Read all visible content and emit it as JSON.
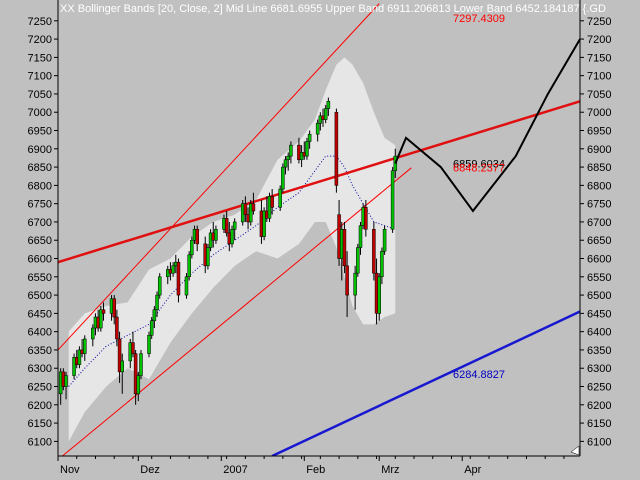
{
  "header": {
    "text": "XX Bollinger Bands [20, Close, 2] Mid Line 6681.6955  Upper Band 6911.206813 Lower Band 6452.184187 {.GD"
  },
  "colors": {
    "plot_bg": "#c0c0c0",
    "band_fill": "#e6e6e6",
    "channel": "#ff0000",
    "trend_red": "#e01010",
    "trend_blue": "#1818d0",
    "projection": "#000000",
    "mid_line": "#0000a0",
    "up_candle": "#00c000",
    "down_candle": "#c00000",
    "header_text": "#ffffff",
    "label_red": "#ff0000",
    "label_blue": "#0000c0"
  },
  "chart_data": {
    "type": "candlestick",
    "title": "XX Bollinger Bands [20, Close, 2]",
    "y_ticks": [
      6100,
      6150,
      6200,
      6250,
      6300,
      6350,
      6400,
      6450,
      6500,
      6550,
      6600,
      6650,
      6700,
      6750,
      6800,
      6850,
      6900,
      6950,
      7000,
      7050,
      7100,
      7150,
      7200,
      7250
    ],
    "x_tick_labels": [
      "Nov",
      "Dez",
      "2007",
      "Feb",
      "Mrz",
      "Apr"
    ],
    "x_tick_days": [
      30,
      60,
      91,
      122,
      150,
      181
    ],
    "x_range_days": [
      30,
      225
    ],
    "ylim": [
      6060,
      7285
    ],
    "annotations": [
      {
        "text": "7297.4309",
        "value": 7297.4309,
        "color": "red"
      },
      {
        "text": "6859.6034",
        "value": 6859.6034,
        "color": "black"
      },
      {
        "text": "6848.2377",
        "value": 6848.2377,
        "color": "red"
      },
      {
        "text": "6284.8827",
        "value": 6284.8827,
        "color": "blue"
      }
    ],
    "candles": [
      {
        "day": 31,
        "o": 6230,
        "h": 6300,
        "l": 6200,
        "c": 6290
      },
      {
        "day": 32,
        "o": 6290,
        "h": 6300,
        "l": 6240,
        "c": 6250
      },
      {
        "day": 33,
        "o": 6250,
        "h": 6290,
        "l": 6215,
        "c": 6280
      },
      {
        "day": 36,
        "o": 6280,
        "h": 6340,
        "l": 6270,
        "c": 6330
      },
      {
        "day": 37,
        "o": 6330,
        "h": 6350,
        "l": 6300,
        "c": 6310
      },
      {
        "day": 38,
        "o": 6310,
        "h": 6360,
        "l": 6300,
        "c": 6350
      },
      {
        "day": 39,
        "o": 6350,
        "h": 6380,
        "l": 6330,
        "c": 6340
      },
      {
        "day": 40,
        "o": 6340,
        "h": 6390,
        "l": 6320,
        "c": 6380
      },
      {
        "day": 43,
        "o": 6380,
        "h": 6420,
        "l": 6360,
        "c": 6410
      },
      {
        "day": 44,
        "o": 6410,
        "h": 6450,
        "l": 6390,
        "c": 6440
      },
      {
        "day": 45,
        "o": 6440,
        "h": 6460,
        "l": 6400,
        "c": 6410
      },
      {
        "day": 46,
        "o": 6410,
        "h": 6470,
        "l": 6400,
        "c": 6460
      },
      {
        "day": 47,
        "o": 6460,
        "h": 6480,
        "l": 6430,
        "c": 6450
      },
      {
        "day": 50,
        "o": 6450,
        "h": 6500,
        "l": 6430,
        "c": 6490
      },
      {
        "day": 51,
        "o": 6490,
        "h": 6500,
        "l": 6420,
        "c": 6440
      },
      {
        "day": 52,
        "o": 6440,
        "h": 6460,
        "l": 6360,
        "c": 6380
      },
      {
        "day": 53,
        "o": 6380,
        "h": 6400,
        "l": 6260,
        "c": 6290
      },
      {
        "day": 54,
        "o": 6290,
        "h": 6340,
        "l": 6230,
        "c": 6320
      },
      {
        "day": 57,
        "o": 6320,
        "h": 6380,
        "l": 6300,
        "c": 6370
      },
      {
        "day": 58,
        "o": 6370,
        "h": 6400,
        "l": 6330,
        "c": 6340
      },
      {
        "day": 59,
        "o": 6340,
        "h": 6350,
        "l": 6200,
        "c": 6230
      },
      {
        "day": 60,
        "o": 6230,
        "h": 6290,
        "l": 6210,
        "c": 6280
      },
      {
        "day": 61,
        "o": 6280,
        "h": 6350,
        "l": 6270,
        "c": 6340
      },
      {
        "day": 64,
        "o": 6340,
        "h": 6400,
        "l": 6330,
        "c": 6390
      },
      {
        "day": 65,
        "o": 6390,
        "h": 6440,
        "l": 6380,
        "c": 6430
      },
      {
        "day": 66,
        "o": 6430,
        "h": 6470,
        "l": 6410,
        "c": 6460
      },
      {
        "day": 67,
        "o": 6460,
        "h": 6510,
        "l": 6440,
        "c": 6500
      },
      {
        "day": 68,
        "o": 6500,
        "h": 6560,
        "l": 6490,
        "c": 6550
      },
      {
        "day": 71,
        "o": 6550,
        "h": 6580,
        "l": 6530,
        "c": 6570
      },
      {
        "day": 72,
        "o": 6570,
        "h": 6590,
        "l": 6540,
        "c": 6560
      },
      {
        "day": 73,
        "o": 6560,
        "h": 6590,
        "l": 6550,
        "c": 6580
      },
      {
        "day": 74,
        "o": 6580,
        "h": 6610,
        "l": 6560,
        "c": 6590
      },
      {
        "day": 75,
        "o": 6590,
        "h": 6600,
        "l": 6480,
        "c": 6500
      },
      {
        "day": 78,
        "o": 6500,
        "h": 6560,
        "l": 6490,
        "c": 6550
      },
      {
        "day": 79,
        "o": 6550,
        "h": 6620,
        "l": 6540,
        "c": 6610
      },
      {
        "day": 80,
        "o": 6610,
        "h": 6660,
        "l": 6600,
        "c": 6650
      },
      {
        "day": 81,
        "o": 6650,
        "h": 6690,
        "l": 6640,
        "c": 6680
      },
      {
        "day": 82,
        "o": 6680,
        "h": 6690,
        "l": 6620,
        "c": 6640
      },
      {
        "day": 85,
        "o": 6640,
        "h": 6660,
        "l": 6560,
        "c": 6580
      },
      {
        "day": 86,
        "o": 6580,
        "h": 6640,
        "l": 6570,
        "c": 6630
      },
      {
        "day": 87,
        "o": 6630,
        "h": 6680,
        "l": 6620,
        "c": 6670
      },
      {
        "day": 88,
        "o": 6670,
        "h": 6700,
        "l": 6630,
        "c": 6650
      },
      {
        "day": 89,
        "o": 6650,
        "h": 6690,
        "l": 6640,
        "c": 6680
      },
      {
        "day": 92,
        "o": 6680,
        "h": 6720,
        "l": 6670,
        "c": 6710
      },
      {
        "day": 93,
        "o": 6710,
        "h": 6730,
        "l": 6660,
        "c": 6670
      },
      {
        "day": 94,
        "o": 6670,
        "h": 6700,
        "l": 6620,
        "c": 6640
      },
      {
        "day": 95,
        "o": 6640,
        "h": 6690,
        "l": 6630,
        "c": 6680
      },
      {
        "day": 96,
        "o": 6680,
        "h": 6710,
        "l": 6650,
        "c": 6700
      },
      {
        "day": 99,
        "o": 6700,
        "h": 6760,
        "l": 6690,
        "c": 6750
      },
      {
        "day": 100,
        "o": 6750,
        "h": 6770,
        "l": 6700,
        "c": 6720
      },
      {
        "day": 101,
        "o": 6720,
        "h": 6740,
        "l": 6680,
        "c": 6700
      },
      {
        "day": 102,
        "o": 6700,
        "h": 6760,
        "l": 6690,
        "c": 6750
      },
      {
        "day": 103,
        "o": 6750,
        "h": 6780,
        "l": 6720,
        "c": 6730
      },
      {
        "day": 106,
        "o": 6730,
        "h": 6760,
        "l": 6640,
        "c": 6660
      },
      {
        "day": 107,
        "o": 6660,
        "h": 6740,
        "l": 6650,
        "c": 6730
      },
      {
        "day": 108,
        "o": 6730,
        "h": 6770,
        "l": 6700,
        "c": 6710
      },
      {
        "day": 109,
        "o": 6710,
        "h": 6780,
        "l": 6700,
        "c": 6770
      },
      {
        "day": 110,
        "o": 6770,
        "h": 6790,
        "l": 6720,
        "c": 6740
      },
      {
        "day": 113,
        "o": 6740,
        "h": 6800,
        "l": 6730,
        "c": 6790
      },
      {
        "day": 114,
        "o": 6790,
        "h": 6860,
        "l": 6780,
        "c": 6850
      },
      {
        "day": 115,
        "o": 6850,
        "h": 6880,
        "l": 6830,
        "c": 6870
      },
      {
        "day": 116,
        "o": 6870,
        "h": 6890,
        "l": 6840,
        "c": 6880
      },
      {
        "day": 117,
        "o": 6880,
        "h": 6920,
        "l": 6860,
        "c": 6910
      },
      {
        "day": 120,
        "o": 6910,
        "h": 6930,
        "l": 6860,
        "c": 6870
      },
      {
        "day": 121,
        "o": 6870,
        "h": 6910,
        "l": 6850,
        "c": 6890
      },
      {
        "day": 122,
        "o": 6890,
        "h": 6920,
        "l": 6870,
        "c": 6880
      },
      {
        "day": 123,
        "o": 6880,
        "h": 6930,
        "l": 6870,
        "c": 6920
      },
      {
        "day": 124,
        "o": 6920,
        "h": 6950,
        "l": 6900,
        "c": 6940
      },
      {
        "day": 127,
        "o": 6940,
        "h": 6980,
        "l": 6920,
        "c": 6970
      },
      {
        "day": 128,
        "o": 6970,
        "h": 7000,
        "l": 6950,
        "c": 6990
      },
      {
        "day": 129,
        "o": 6990,
        "h": 7010,
        "l": 6960,
        "c": 6980
      },
      {
        "day": 130,
        "o": 6980,
        "h": 7020,
        "l": 6970,
        "c": 7010
      },
      {
        "day": 131,
        "o": 7010,
        "h": 7040,
        "l": 6990,
        "c": 7030
      },
      {
        "day": 134,
        "o": 7000,
        "h": 7010,
        "l": 6780,
        "c": 6800
      },
      {
        "day": 135,
        "o": 6720,
        "h": 6760,
        "l": 6580,
        "c": 6600
      },
      {
        "day": 136,
        "o": 6600,
        "h": 6700,
        "l": 6540,
        "c": 6680
      },
      {
        "day": 137,
        "o": 6680,
        "h": 6700,
        "l": 6560,
        "c": 6580
      },
      {
        "day": 138,
        "o": 6580,
        "h": 6620,
        "l": 6440,
        "c": 6500
      },
      {
        "day": 141,
        "o": 6500,
        "h": 6580,
        "l": 6460,
        "c": 6560
      },
      {
        "day": 142,
        "o": 6560,
        "h": 6640,
        "l": 6550,
        "c": 6630
      },
      {
        "day": 143,
        "o": 6630,
        "h": 6700,
        "l": 6610,
        "c": 6690
      },
      {
        "day": 144,
        "o": 6690,
        "h": 6750,
        "l": 6680,
        "c": 6740
      },
      {
        "day": 145,
        "o": 6740,
        "h": 6760,
        "l": 6660,
        "c": 6680
      },
      {
        "day": 148,
        "o": 6680,
        "h": 6700,
        "l": 6540,
        "c": 6560
      },
      {
        "day": 149,
        "o": 6560,
        "h": 6600,
        "l": 6420,
        "c": 6450
      },
      {
        "day": 150,
        "o": 6450,
        "h": 6560,
        "l": 6430,
        "c": 6550
      },
      {
        "day": 151,
        "o": 6550,
        "h": 6630,
        "l": 6530,
        "c": 6620
      },
      {
        "day": 152,
        "o": 6620,
        "h": 6690,
        "l": 6610,
        "c": 6680
      },
      {
        "day": 155,
        "o": 6680,
        "h": 6850,
        "l": 6670,
        "c": 6840
      },
      {
        "day": 156,
        "o": 6840,
        "h": 6900,
        "l": 6820,
        "c": 6880
      }
    ],
    "bollinger": {
      "days": [
        34,
        40,
        48,
        56,
        64,
        72,
        80,
        88,
        96,
        104,
        112,
        120,
        126,
        130,
        134,
        137,
        140,
        144,
        148,
        152,
        156
      ],
      "upper": [
        6400,
        6450,
        6470,
        6480,
        6570,
        6600,
        6660,
        6700,
        6720,
        6760,
        6870,
        6920,
        6980,
        7060,
        7130,
        7150,
        7130,
        7080,
        7000,
        6930,
        6910
      ],
      "mid": [
        6250,
        6300,
        6360,
        6390,
        6420,
        6500,
        6560,
        6610,
        6650,
        6690,
        6740,
        6780,
        6840,
        6880,
        6880,
        6850,
        6800,
        6750,
        6700,
        6690,
        6680
      ],
      "lower": [
        6100,
        6180,
        6250,
        6300,
        6270,
        6370,
        6450,
        6520,
        6580,
        6620,
        6600,
        6640,
        6700,
        6700,
        6630,
        6550,
        6470,
        6420,
        6420,
        6440,
        6450
      ]
    },
    "channel_lines": [
      {
        "from": [
          30,
          6350
        ],
        "to": [
          150,
          7297
        ]
      },
      {
        "from": [
          30,
          6050
        ],
        "to": [
          162,
          6848
        ]
      }
    ],
    "trendline_red": {
      "from": [
        30,
        6590
      ],
      "to": [
        225,
        7030
      ]
    },
    "trendline_blue": {
      "from": [
        110,
        6060
      ],
      "to": [
        225,
        6455
      ]
    },
    "projection": {
      "days": [
        156,
        160,
        173,
        185,
        201,
        213,
        225
      ],
      "values": [
        6860,
        6930,
        6850,
        6730,
        6880,
        7050,
        7200
      ]
    }
  }
}
